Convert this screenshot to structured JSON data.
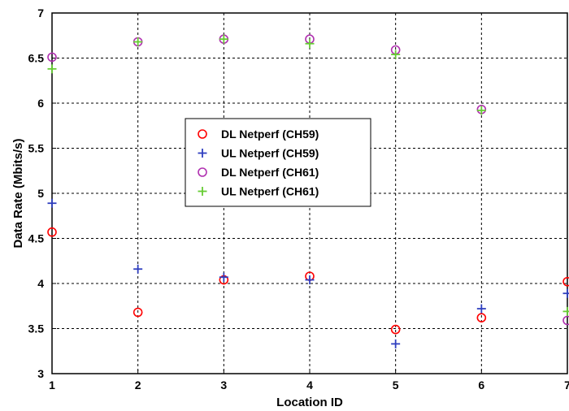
{
  "chart_data": {
    "type": "scatter",
    "title": "",
    "xlabel": "Location ID",
    "ylabel": "Data Rate (Mbits/s)",
    "xlim": [
      1,
      7
    ],
    "ylim": [
      3,
      7
    ],
    "xticks": [
      1,
      2,
      3,
      4,
      5,
      6,
      7
    ],
    "yticks": [
      3,
      3.5,
      4,
      4.5,
      5,
      5.5,
      6,
      6.5,
      7
    ],
    "ytick_labels": [
      "3",
      "3.5",
      "4",
      "4.5",
      "5",
      "5.5",
      "6",
      "6.5",
      "7"
    ],
    "grid": true,
    "legend_position": "center",
    "series": [
      {
        "name": "DL Netperf (CH59)",
        "marker": "circle",
        "color": "#ff0000",
        "x": [
          1,
          2,
          3,
          4,
          5,
          6,
          7
        ],
        "y": [
          4.57,
          3.68,
          4.04,
          4.08,
          3.49,
          3.62,
          4.02
        ]
      },
      {
        "name": "UL Netperf (CH59)",
        "marker": "plus",
        "color": "#2f3fbf",
        "x": [
          1,
          2,
          3,
          4,
          5,
          6,
          7
        ],
        "y": [
          4.89,
          4.16,
          4.07,
          4.04,
          3.33,
          3.72,
          3.89
        ]
      },
      {
        "name": "DL Netperf (CH61)",
        "marker": "circle",
        "color": "#b030b0",
        "x": [
          1,
          2,
          3,
          4,
          5,
          6,
          7
        ],
        "y": [
          6.51,
          6.68,
          6.71,
          6.71,
          6.59,
          5.93,
          3.59
        ]
      },
      {
        "name": "UL Netperf (CH61)",
        "marker": "plus",
        "color": "#66cc33",
        "x": [
          1,
          2,
          3,
          4,
          5,
          6,
          7
        ],
        "y": [
          6.38,
          6.68,
          6.71,
          6.66,
          6.54,
          5.92,
          3.69
        ]
      }
    ]
  }
}
